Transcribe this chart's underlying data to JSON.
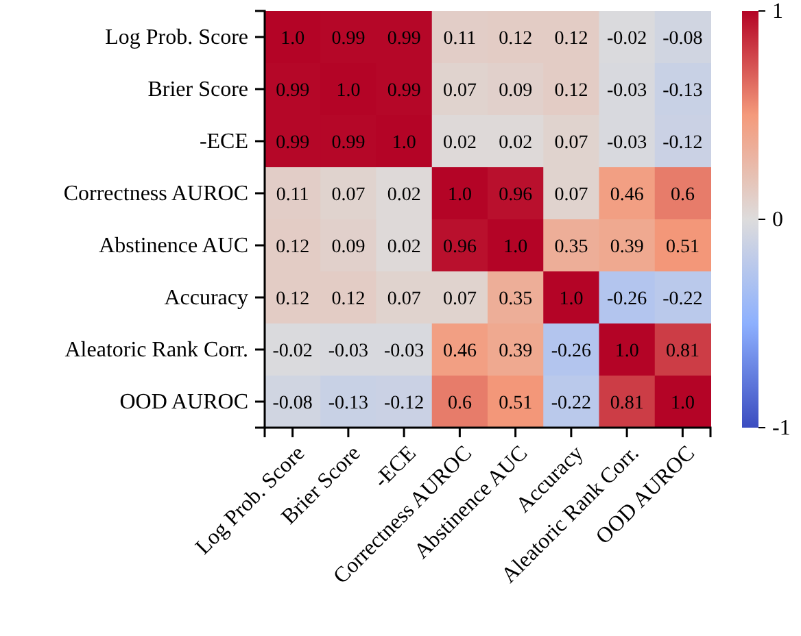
{
  "chart_data": {
    "type": "heatmap",
    "categories": [
      "Log Prob. Score",
      "Brier Score",
      "-ECE",
      "Correctness AUROC",
      "Abstinence AUC",
      "Accuracy",
      "Aleatoric Rank Corr.",
      "OOD AUROC"
    ],
    "y_categories": [
      "Log Prob. Score",
      "Brier Score",
      "-ECE",
      "Correctness AUROC",
      "Abstinence AUC",
      "Accuracy",
      "Aleatoric Rank Corr.",
      "OOD AUROC"
    ],
    "cells": [
      [
        1,
        0.99,
        0.99,
        0.11,
        0.12,
        0.12,
        -0.02,
        -0.08
      ],
      [
        0.99,
        1,
        0.99,
        0.07,
        0.09,
        0.12,
        -0.03,
        -0.13
      ],
      [
        0.99,
        0.99,
        1,
        0.02,
        0.02,
        0.07,
        -0.03,
        -0.12
      ],
      [
        0.11,
        0.07,
        0.02,
        1,
        0.96,
        0.07,
        0.46,
        0.6
      ],
      [
        0.12,
        0.09,
        0.02,
        0.96,
        1,
        0.35,
        0.39,
        0.51
      ],
      [
        0.12,
        0.12,
        0.07,
        0.07,
        0.35,
        1,
        -0.26,
        -0.22
      ],
      [
        -0.02,
        -0.03,
        -0.03,
        0.46,
        0.39,
        -0.26,
        1,
        0.81
      ],
      [
        -0.08,
        -0.13,
        -0.12,
        0.6,
        0.51,
        -0.22,
        0.81,
        1
      ]
    ],
    "cell_labels": [
      [
        "1.0",
        "0.99",
        "0.99",
        "0.11",
        "0.12",
        "0.12",
        "-0.02",
        "-0.08"
      ],
      [
        "0.99",
        "1.0",
        "0.99",
        "0.07",
        "0.09",
        "0.12",
        "-0.03",
        "-0.13"
      ],
      [
        "0.99",
        "0.99",
        "1.0",
        "0.02",
        "0.02",
        "0.07",
        "-0.03",
        "-0.12"
      ],
      [
        "0.11",
        "0.07",
        "0.02",
        "1.0",
        "0.96",
        "0.07",
        "0.46",
        "0.6"
      ],
      [
        "0.12",
        "0.09",
        "0.02",
        "0.96",
        "1.0",
        "0.35",
        "0.39",
        "0.51"
      ],
      [
        "0.12",
        "0.12",
        "0.07",
        "0.07",
        "0.35",
        "1.0",
        "-0.26",
        "-0.22"
      ],
      [
        "-0.02",
        "-0.03",
        "-0.03",
        "0.46",
        "0.39",
        "-0.26",
        "1.0",
        "0.81"
      ],
      [
        "-0.08",
        "-0.13",
        "-0.12",
        "0.6",
        "0.51",
        "-0.22",
        "0.81",
        "1.0"
      ]
    ],
    "clim": [
      -1,
      1
    ],
    "cticks": [
      -1,
      0,
      1
    ]
  }
}
